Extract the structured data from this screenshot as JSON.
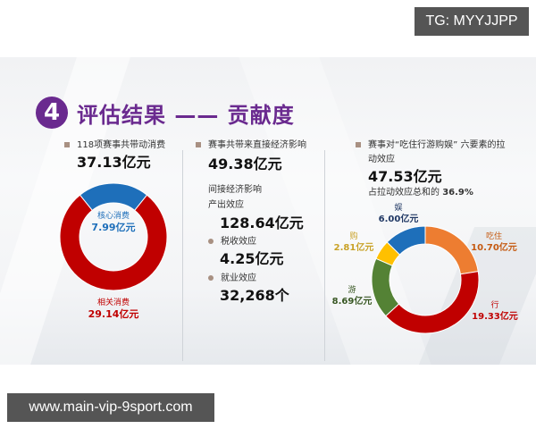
{
  "watermarks": {
    "top": "TG: MYYJJPP",
    "bottom": "www.main-vip-9sport.com"
  },
  "slide": {
    "badge_number": "4",
    "title": "评估结果 —— 贡献度",
    "colors": {
      "title_purple": "#6a2a8f",
      "red": "#c00000",
      "blue": "#1e6fba",
      "orange": "#ed7d31",
      "green": "#548235",
      "yellow": "#ffc000",
      "bullet": "#a89082"
    },
    "col1": {
      "label": "118项赛事共带动消费",
      "value": "37.13亿元"
    },
    "col2": {
      "direct_label": "赛事共带来直接经济影响",
      "direct_value": "49.38亿元",
      "indirect_label": "间接经济影响",
      "output_label": "产出效应",
      "output_value": "128.64亿元",
      "tax_label": "税收效应",
      "tax_value": "4.25亿元",
      "employment_label": "就业效应",
      "employment_value": "32,268个"
    },
    "col3": {
      "label_line1": "赛事对“吃住行游购娱” 六要素的拉",
      "label_line2": "动效应",
      "value": "47.53亿元",
      "share_prefix": "占拉动效应总和的 ",
      "share_value": "36.9%"
    }
  },
  "chart_data": [
    {
      "type": "pie",
      "variant": "donut",
      "title": "118项赛事共带动消费 37.13亿元",
      "categories": [
        "核心消费",
        "相关消费"
      ],
      "values": [
        7.99,
        29.14
      ],
      "labels": [
        "7.99亿元",
        "29.14亿元"
      ],
      "colors": [
        "#1e6fba",
        "#c00000"
      ],
      "unit": "亿元",
      "total": 37.13
    },
    {
      "type": "pie",
      "variant": "donut",
      "title": "赛事对“吃住行游购娱”六要素的拉动效应 47.53亿元",
      "categories": [
        "吃住",
        "行",
        "游",
        "购",
        "娱"
      ],
      "values": [
        10.7,
        19.33,
        8.69,
        2.81,
        6.0
      ],
      "labels": [
        "10.70亿元",
        "19.33亿元",
        "8.69亿元",
        "2.81亿元",
        "6.00亿元"
      ],
      "colors": [
        "#ed7d31",
        "#c00000",
        "#548235",
        "#ffc000",
        "#1e6fba"
      ],
      "unit": "亿元",
      "total": 47.53,
      "annotation": "占拉动效应总和的 36.9%"
    }
  ]
}
